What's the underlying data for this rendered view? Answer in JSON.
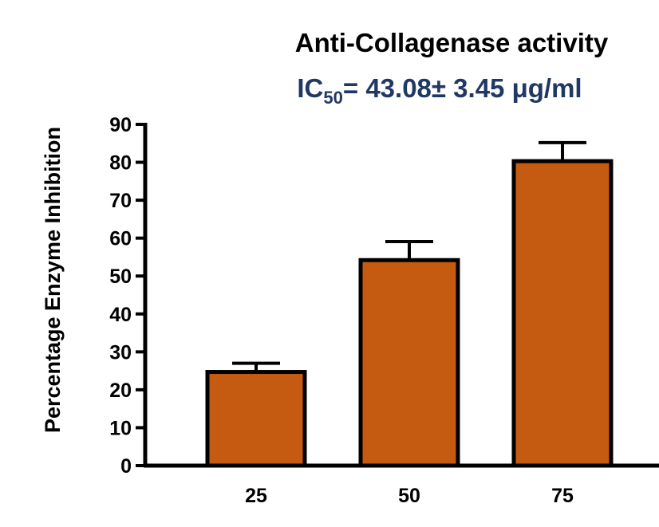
{
  "colors": {
    "bar_fill": "#C55A11",
    "bar_stroke": "#000000",
    "axis": "#000000",
    "ic50_text": "#1F3864",
    "title_text": "#000000"
  },
  "chart_data": {
    "type": "bar",
    "title": "Anti-Collagenase activity",
    "subtitle": {
      "prefix": "IC",
      "subscript": "50",
      "suffix": "= 43.08± 3.45 μg/ml"
    },
    "xlabel": "",
    "ylabel": "Percentage Enzyme Inhibition",
    "categories": [
      "25",
      "50",
      "75"
    ],
    "values": [
      24.7,
      54.2,
      80.3
    ],
    "errors": [
      2.3,
      4.9,
      4.9
    ],
    "ylim": [
      0,
      90
    ],
    "yticks": [
      0,
      10,
      20,
      30,
      40,
      50,
      60,
      70,
      80,
      90
    ],
    "grid": false
  }
}
